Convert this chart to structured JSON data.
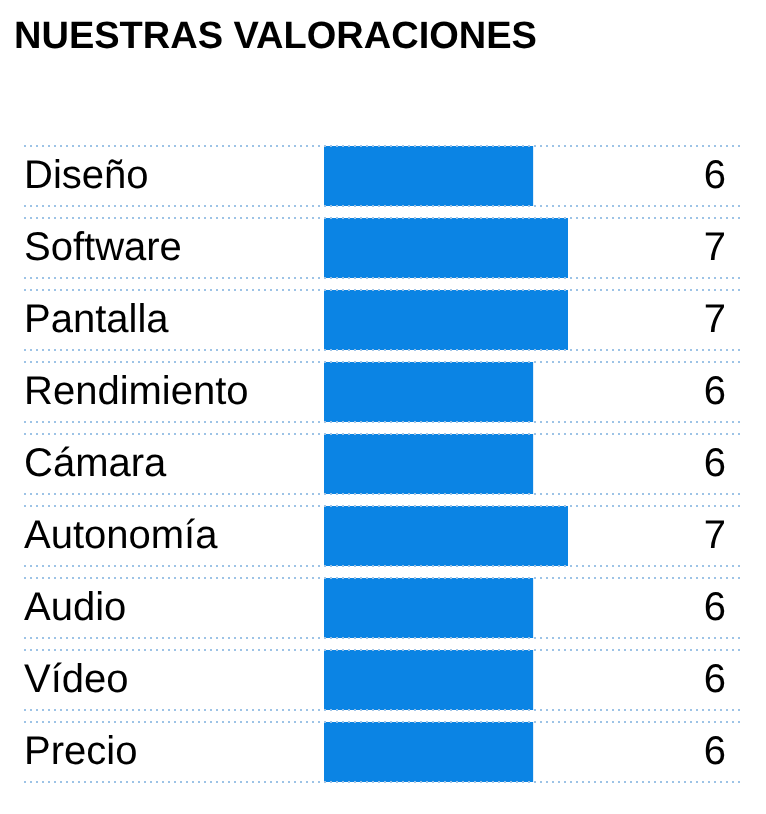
{
  "chart_data": {
    "type": "bar",
    "orientation": "horizontal",
    "title": "NUESTRAS VALORACIONES",
    "categories": [
      "Diseño",
      "Software",
      "Pantalla",
      "Rendimiento",
      "Cámara",
      "Autonomía",
      "Audio",
      "Vídeo",
      "Precio"
    ],
    "values": [
      6,
      7,
      7,
      6,
      6,
      7,
      6,
      6,
      6
    ],
    "color": "#0b84e4",
    "data_labels": true,
    "tick_labels": "y"
  }
}
